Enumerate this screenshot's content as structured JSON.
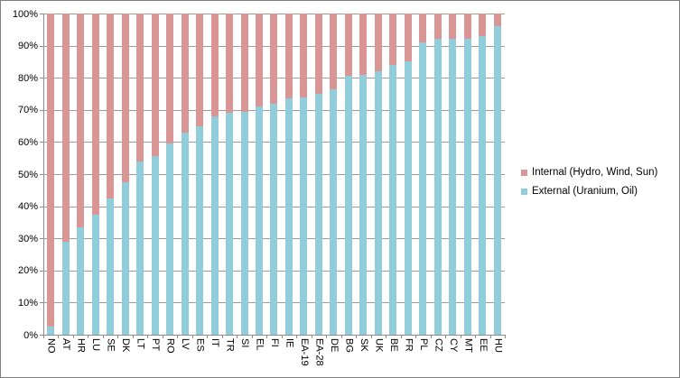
{
  "chart_data": {
    "type": "bar",
    "variant": "100-percent-stacked-column",
    "title": "",
    "xlabel": "",
    "ylabel": "",
    "ylim": [
      0,
      100
    ],
    "grid": true,
    "legend_position": "right",
    "y_tick_labels": [
      "0%",
      "10%",
      "20%",
      "30%",
      "40%",
      "50%",
      "60%",
      "70%",
      "80%",
      "90%",
      "100%"
    ],
    "categories": [
      "NO",
      "AT",
      "HR",
      "LU",
      "SE",
      "DK",
      "LT",
      "PT",
      "RO",
      "LV",
      "ES",
      "IT",
      "TR",
      "SI",
      "EL",
      "FI",
      "IE",
      "EA-19",
      "EA-28",
      "DE",
      "BG",
      "SK",
      "UK",
      "BE",
      "FR",
      "PL",
      "CZ",
      "CY",
      "MT",
      "EE",
      "HU"
    ],
    "series": [
      {
        "name": "Internal (Hydro, Wind, Sun)",
        "color": "#D99694",
        "values": [
          97.5,
          71,
          66.5,
          62.5,
          57.5,
          52.5,
          46,
          44.5,
          40.5,
          37,
          35,
          32,
          31,
          30.5,
          29,
          28,
          26.5,
          26,
          25,
          23.5,
          19.5,
          19,
          18,
          16,
          15,
          9,
          8,
          7.9,
          7.9,
          7,
          4
        ]
      },
      {
        "name": "External (Uranium, Oil)",
        "color": "#92CDDC",
        "values": [
          2.5,
          29,
          33.5,
          37.5,
          42.5,
          47.5,
          54,
          55.5,
          59.5,
          63,
          65,
          68,
          69,
          69.5,
          71,
          72,
          73.5,
          74,
          75,
          76.5,
          80.5,
          81,
          82,
          84,
          85,
          91,
          92,
          92.1,
          92.1,
          93,
          96
        ]
      }
    ]
  },
  "legend": {
    "items": [
      {
        "label": "Internal (Hydro, Wind, Sun)",
        "color": "#D99694"
      },
      {
        "label": "External (Uranium, Oil)",
        "color": "#92CDDC"
      }
    ]
  },
  "colors": {
    "gridline": "#9b9b9b",
    "axis": "#8c8c8c",
    "border": "#7f7f7f"
  }
}
